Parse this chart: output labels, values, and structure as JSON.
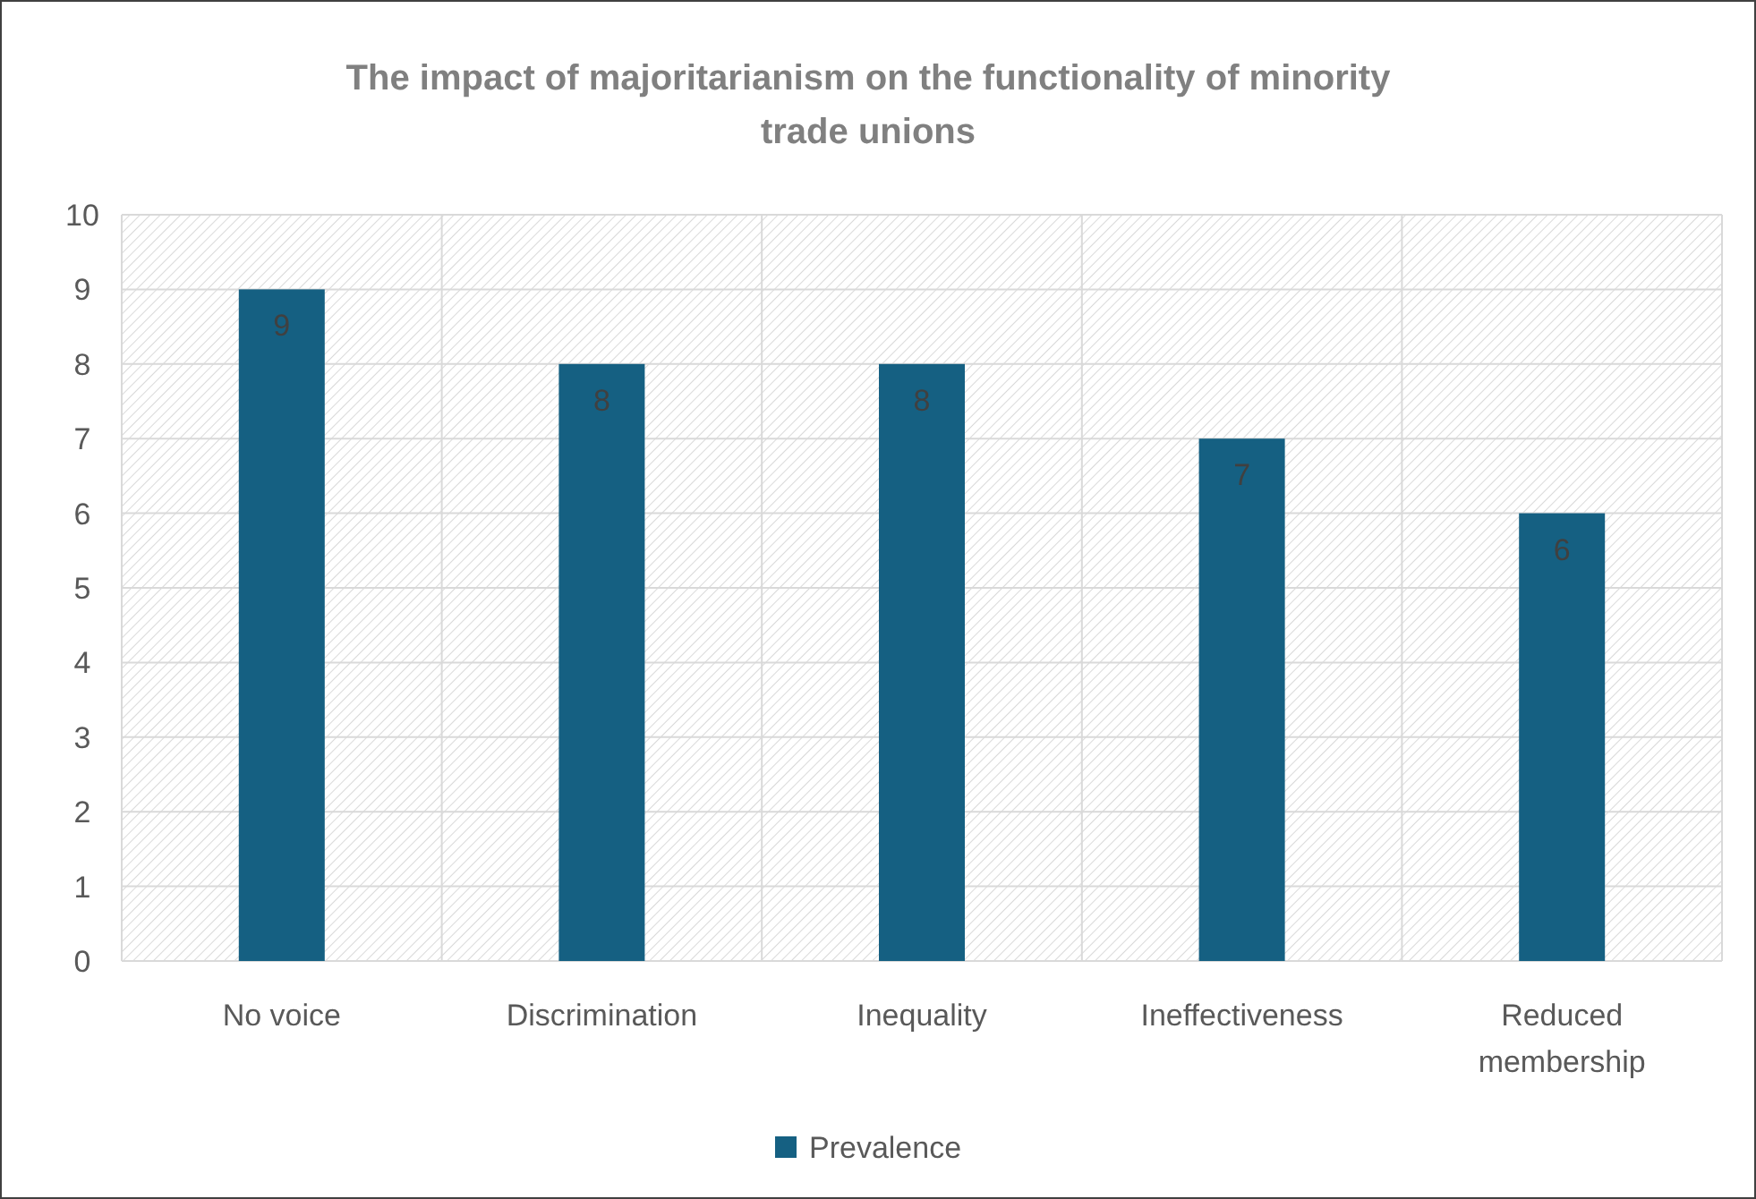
{
  "chart_data": {
    "type": "bar",
    "title": "The impact of majoritarianism on the functionality of minority trade unions",
    "categories": [
      "No voice",
      "Discrimination",
      "Inequality",
      "Ineffectiveness",
      "Reduced membership"
    ],
    "series": [
      {
        "name": "Prevalence",
        "color": "#156082",
        "values": [
          9,
          8,
          8,
          7,
          6
        ]
      }
    ],
    "ylim": [
      0,
      10
    ],
    "yticks": [
      0,
      1,
      2,
      3,
      4,
      5,
      6,
      7,
      8,
      9,
      10
    ],
    "grid": true,
    "data_labels": true,
    "legend": "bottom"
  }
}
